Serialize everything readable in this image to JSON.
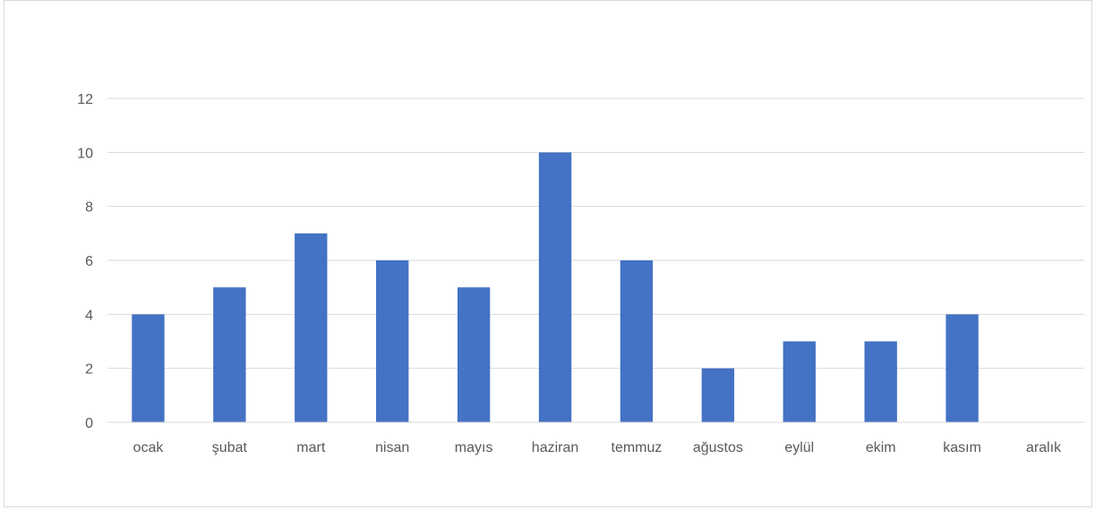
{
  "chart_data": {
    "type": "bar",
    "categories": [
      "ocak",
      "şubat",
      "mart",
      "nisan",
      "mayıs",
      "haziran",
      "temmuz",
      "ağustos",
      "eylül",
      "ekim",
      "kasım",
      "aralık"
    ],
    "values": [
      4,
      5,
      7,
      6,
      5,
      10,
      6,
      2,
      3,
      3,
      4,
      0
    ],
    "title": "",
    "xlabel": "",
    "ylabel": "",
    "ylim": [
      0,
      12
    ],
    "yticks": [
      0,
      2,
      4,
      6,
      8,
      10,
      12
    ],
    "grid": true,
    "legend": "none",
    "bar_color": "#4472c4"
  }
}
